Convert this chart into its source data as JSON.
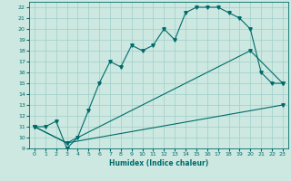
{
  "xlabel": "Humidex (Indice chaleur)",
  "bg_color": "#cce8e0",
  "grid_color": "#9fcfca",
  "line_color": "#006b6b",
  "xlim": [
    -0.5,
    23.5
  ],
  "ylim": [
    9,
    22.5
  ],
  "xticks": [
    0,
    1,
    2,
    3,
    4,
    5,
    6,
    7,
    8,
    9,
    10,
    11,
    12,
    13,
    14,
    15,
    16,
    17,
    18,
    19,
    20,
    21,
    22,
    23
  ],
  "yticks": [
    9,
    10,
    11,
    12,
    13,
    14,
    15,
    16,
    17,
    18,
    19,
    20,
    21,
    22
  ],
  "line1_x": [
    0,
    1,
    2,
    3,
    4,
    5,
    6,
    7,
    8,
    9,
    10,
    11,
    12,
    13,
    14,
    15,
    16,
    17,
    18,
    19,
    20,
    21,
    22,
    23
  ],
  "line1_y": [
    11,
    11,
    11.5,
    9,
    10,
    12.5,
    15.0,
    17.0,
    16.5,
    18.5,
    18.0,
    18.5,
    20.0,
    19.0,
    21.5,
    22.0,
    22.0,
    22.0,
    21.5,
    21.0,
    20.0,
    16.0,
    15.0,
    15.0
  ],
  "line2_x": [
    0,
    3,
    23
  ],
  "line2_y": [
    11,
    9.5,
    13
  ],
  "line3_x": [
    0,
    3,
    20,
    23
  ],
  "line3_y": [
    11,
    9.5,
    18,
    15
  ]
}
